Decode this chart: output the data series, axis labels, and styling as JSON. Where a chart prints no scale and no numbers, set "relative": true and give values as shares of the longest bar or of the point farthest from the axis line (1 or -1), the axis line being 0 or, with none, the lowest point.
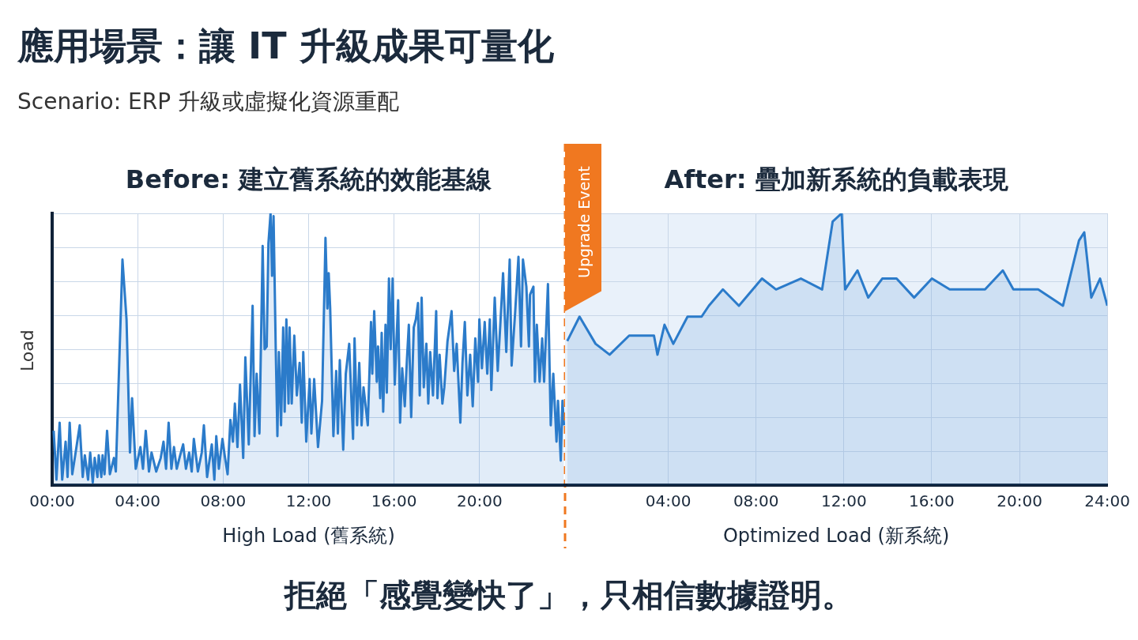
{
  "chart_data": [
    {
      "type": "other",
      "title": "應用場景：讓 IT 升級成果可量化",
      "subtitle": "Scenario: ERP 升級或虛擬化資源重配",
      "annotations": [
        "拒絕「感覺變快了」，只相信數據證明。"
      ]
    },
    {
      "type": "area",
      "title": "Before: 建立舊系統的效能基線",
      "xlabel": "High Load (舊系統)",
      "ylabel": "Load",
      "relative": true,
      "xlim": [
        0,
        24
      ],
      "xticks": [
        {
          "value": 0,
          "label": "00:00"
        },
        {
          "value": 4,
          "label": "04:00"
        },
        {
          "value": 8,
          "label": "08:00"
        },
        {
          "value": 12,
          "label": "12:00"
        },
        {
          "value": 16,
          "label": "16:00"
        },
        {
          "value": 20,
          "label": "20:00"
        }
      ],
      "grid": true,
      "ref_lines": [
        {
          "axis": "x",
          "value": 24,
          "label": "Upgrade Event",
          "color": "#f07820",
          "line_style": "dashed"
        }
      ],
      "series": [
        {
          "color": "#2b7bca",
          "x": [
            0.07,
            0.2,
            0.35,
            0.47,
            0.63,
            0.72,
            0.82,
            0.94,
            1.06,
            1.29,
            1.43,
            1.53,
            1.68,
            1.78,
            1.9,
            1.99,
            2.12,
            2.18,
            2.3,
            2.36,
            2.45,
            2.57,
            2.7,
            2.89,
            2.98,
            3.29,
            3.48,
            3.64,
            3.74,
            3.91,
            4.13,
            4.25,
            4.38,
            4.53,
            4.65,
            4.87,
            5.08,
            5.21,
            5.33,
            5.45,
            5.58,
            5.7,
            5.83,
            5.99,
            6.13,
            6.26,
            6.41,
            6.53,
            6.63,
            6.82,
            7.0,
            7.1,
            7.25,
            7.47,
            7.59,
            7.68,
            7.8,
            7.97,
            8.09,
            8.21,
            8.34,
            8.46,
            8.55,
            8.67,
            8.79,
            8.94,
            9.04,
            9.2,
            9.38,
            9.47,
            9.57,
            9.7,
            9.85,
            9.94,
            10.04,
            10.12,
            10.22,
            10.29,
            10.36,
            10.46,
            10.54,
            10.61,
            10.71,
            10.81,
            10.88,
            10.96,
            11.06,
            11.11,
            11.21,
            11.33,
            11.45,
            11.58,
            11.68,
            11.75,
            11.89,
            12.05,
            12.13,
            12.26,
            12.44,
            12.63,
            12.79,
            12.88,
            12.94,
            13.01,
            13.16,
            13.29,
            13.37,
            13.46,
            13.62,
            13.74,
            13.9,
            13.99,
            14.08,
            14.15,
            14.27,
            14.37,
            14.48,
            14.57,
            14.77,
            14.92,
            14.98,
            15.07,
            15.19,
            15.25,
            15.35,
            15.42,
            15.49,
            15.6,
            15.66,
            15.76,
            15.84,
            15.93,
            16.03,
            16.19,
            16.28,
            16.38,
            16.5,
            16.6,
            16.69,
            16.8,
            16.92,
            17.02,
            17.12,
            17.2,
            17.29,
            17.39,
            17.51,
            17.6,
            17.69,
            17.82,
            17.97,
            18.03,
            18.13,
            18.26,
            18.35,
            18.5,
            18.69,
            18.81,
            18.93,
            19.1,
            19.2,
            19.31,
            19.43,
            19.56,
            19.68,
            19.8,
            19.93,
            19.99,
            20.11,
            20.24,
            20.36,
            20.48,
            20.55,
            20.71,
            20.85,
            20.97,
            21.1,
            21.25,
            21.41,
            21.5,
            21.66,
            21.82,
            21.94,
            22.03,
            22.19,
            22.31,
            22.36,
            22.52,
            22.59,
            22.68,
            22.81,
            22.93,
            23.02,
            23.2,
            23.33,
            23.45,
            23.6,
            23.67,
            23.8,
            23.88,
            23.95
          ],
          "values": [
            0.2,
            0.02,
            0.23,
            0.02,
            0.16,
            0.03,
            0.23,
            0.04,
            0.1,
            0.22,
            0.03,
            0.11,
            0.02,
            0.12,
            0.01,
            0.1,
            0.03,
            0.11,
            0.03,
            0.11,
            0.04,
            0.2,
            0.04,
            0.1,
            0.05,
            0.83,
            0.61,
            0.12,
            0.32,
            0.06,
            0.14,
            0.06,
            0.2,
            0.05,
            0.12,
            0.05,
            0.1,
            0.16,
            0.06,
            0.23,
            0.06,
            0.14,
            0.06,
            0.11,
            0.15,
            0.06,
            0.12,
            0.05,
            0.17,
            0.05,
            0.12,
            0.22,
            0.03,
            0.15,
            0.02,
            0.18,
            0.06,
            0.17,
            0.1,
            0.04,
            0.24,
            0.16,
            0.3,
            0.14,
            0.37,
            0.1,
            0.47,
            0.15,
            0.66,
            0.18,
            0.41,
            0.19,
            0.88,
            0.5,
            0.51,
            0.89,
            1.0,
            0.77,
            0.99,
            0.51,
            0.18,
            0.49,
            0.22,
            0.58,
            0.27,
            0.61,
            0.3,
            0.58,
            0.3,
            0.55,
            0.33,
            0.45,
            0.23,
            0.49,
            0.16,
            0.39,
            0.19,
            0.39,
            0.14,
            0.31,
            0.91,
            0.65,
            0.78,
            0.65,
            0.18,
            0.42,
            0.19,
            0.46,
            0.13,
            0.41,
            0.52,
            0.34,
            0.17,
            0.54,
            0.22,
            0.45,
            0.22,
            0.36,
            0.22,
            0.6,
            0.41,
            0.64,
            0.38,
            0.51,
            0.32,
            0.56,
            0.27,
            0.59,
            0.34,
            0.76,
            0.5,
            0.76,
            0.37,
            0.68,
            0.23,
            0.43,
            0.29,
            0.46,
            0.59,
            0.25,
            0.58,
            0.61,
            0.67,
            0.33,
            0.69,
            0.36,
            0.52,
            0.3,
            0.49,
            0.33,
            0.64,
            0.32,
            0.48,
            0.3,
            0.36,
            0.53,
            0.64,
            0.42,
            0.52,
            0.23,
            0.45,
            0.6,
            0.33,
            0.48,
            0.29,
            0.54,
            0.38,
            0.61,
            0.43,
            0.6,
            0.41,
            0.61,
            0.35,
            0.69,
            0.42,
            0.59,
            0.78,
            0.49,
            0.83,
            0.44,
            0.63,
            0.84,
            0.51,
            0.83,
            0.73,
            0.51,
            0.7,
            0.73,
            0.38,
            0.59,
            0.38,
            0.54,
            0.38,
            0.74,
            0.22,
            0.41,
            0.16,
            0.31,
            0.09,
            0.31,
            0.22
          ]
        }
      ]
    },
    {
      "type": "area",
      "title": "After: 疊加新系統的負載表現",
      "xlabel": "Optimized Load (新系統)",
      "relative": true,
      "xlim": [
        -0.7,
        24
      ],
      "xticks": [
        {
          "value": 4,
          "label": "04:00"
        },
        {
          "value": 8,
          "label": "08:00"
        },
        {
          "value": 12,
          "label": "12:00"
        },
        {
          "value": 16,
          "label": "16:00"
        },
        {
          "value": 20,
          "label": "20:00"
        },
        {
          "value": 24,
          "label": "24:00"
        }
      ],
      "grid": true,
      "bands": [
        {
          "axis": "x",
          "from": -0.7,
          "to": 24,
          "color": "#e9f1fa"
        }
      ],
      "series": [
        {
          "color": "#2b7bca",
          "x": [
            -0.6,
            -0.04,
            0.69,
            1.33,
            2.22,
            3.35,
            3.51,
            3.83,
            4.23,
            4.88,
            5.52,
            5.85,
            6.49,
            7.22,
            8.27,
            8.91,
            10.04,
            11.01,
            11.49,
            11.9,
            12.06,
            12.62,
            13.11,
            13.75,
            14.4,
            15.2,
            16.01,
            16.82,
            17.63,
            18.43,
            19.24,
            19.72,
            20.85,
            21.98,
            22.71,
            22.95,
            23.27,
            23.67,
            24.0
          ],
          "values": [
            0.53,
            0.62,
            0.52,
            0.48,
            0.55,
            0.55,
            0.48,
            0.59,
            0.52,
            0.62,
            0.62,
            0.66,
            0.72,
            0.66,
            0.76,
            0.72,
            0.76,
            0.72,
            0.97,
            1.0,
            0.72,
            0.79,
            0.69,
            0.76,
            0.76,
            0.69,
            0.76,
            0.72,
            0.72,
            0.72,
            0.79,
            0.72,
            0.72,
            0.66,
            0.9,
            0.93,
            0.69,
            0.76,
            0.66
          ]
        }
      ]
    }
  ]
}
